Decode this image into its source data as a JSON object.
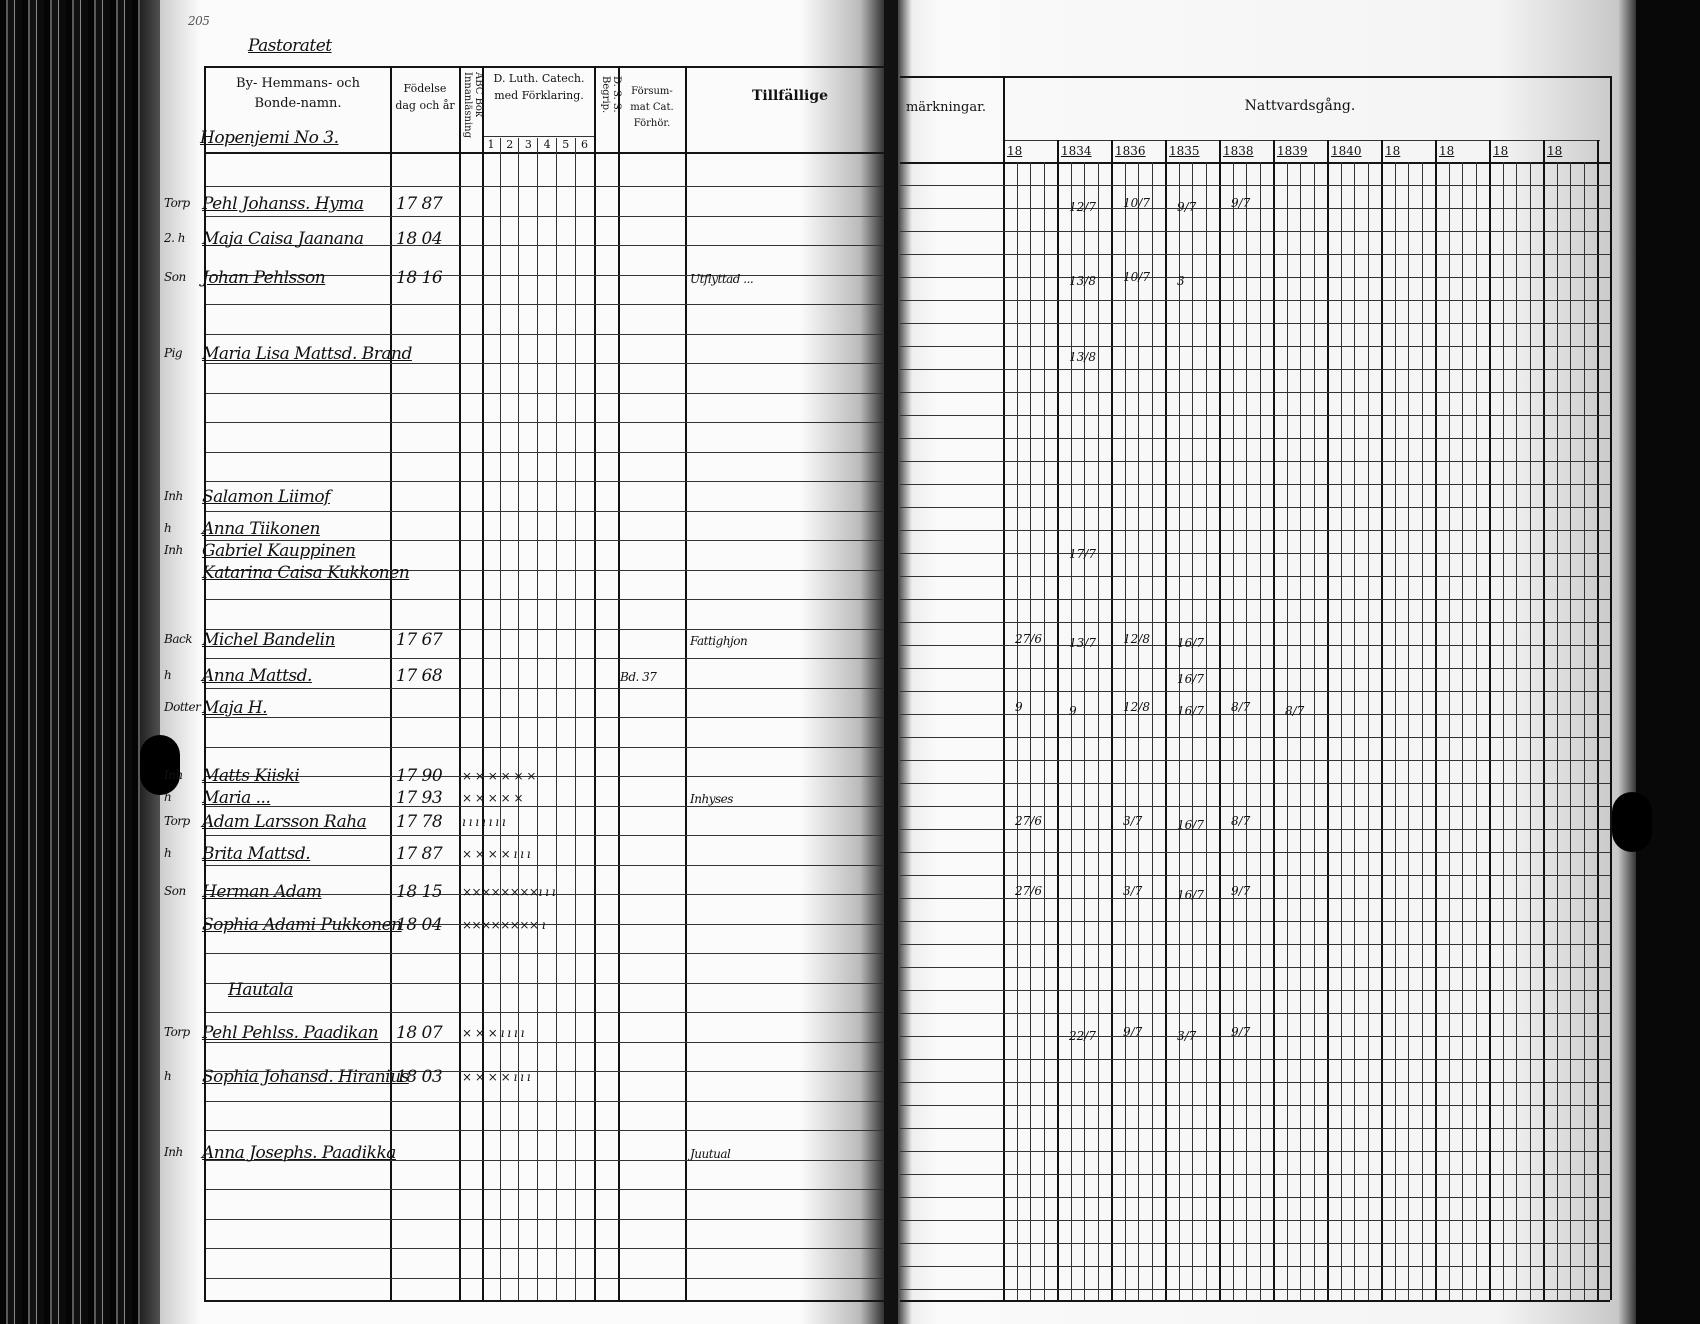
{
  "page_number": "205",
  "title": "Pastoratet",
  "left_header": {
    "name_col": [
      "By- Hemmans- och",
      "Bonde-namn."
    ],
    "birth_col": [
      "Födelse",
      "dag och år"
    ],
    "abc_col": "ABC Bok Innanläsning",
    "catech_col": [
      "D. Luth. Catech.",
      "med Förklaring."
    ],
    "catech_sub": [
      "1",
      "2",
      "3",
      "4",
      "5",
      "6"
    ],
    "dss_col": "D. S. S. Begrip.",
    "forsum_col": [
      "Försum-",
      "mat Cat.",
      "Förhör."
    ],
    "tillf_col": "Tillfällige"
  },
  "right_header": {
    "remarks_col": "märkningar.",
    "communion_col": "Nattvardsgång.",
    "years": [
      "18",
      "1834",
      "1836",
      "1835",
      "1838",
      "1839",
      "1840",
      "18",
      "18",
      "18",
      "18"
    ]
  },
  "village": "Hopenjemi No 3.",
  "entries": [
    {
      "prefix": "Torp",
      "name": "Pehl Johanss. Hyma",
      "birth": "17 87",
      "catech": "",
      "forsum": "",
      "note": "",
      "communion": [
        "",
        "12/7",
        "10/7",
        "9/7",
        "9/7",
        "",
        "",
        "",
        "",
        "",
        ""
      ]
    },
    {
      "prefix": "2. h",
      "name": "Maja Caisa Jaanana",
      "birth": "18 04",
      "catech": "",
      "forsum": "",
      "note": "",
      "communion": [
        "",
        "",
        "",
        "",
        "",
        "",
        "",
        "",
        "",
        "",
        ""
      ]
    },
    {
      "prefix": "Son",
      "name": "Johan Pehlsson",
      "birth": "18 16",
      "catech": "",
      "forsum": "",
      "note": "Utflyttad ...",
      "communion": [
        "",
        "13/8",
        "10/7",
        "3",
        "",
        "",
        "",
        "",
        "",
        "",
        ""
      ]
    },
    {
      "prefix": "Pig",
      "name": "Maria Lisa Mattsd. Brand",
      "birth": "",
      "catech": "",
      "forsum": "",
      "note": "",
      "communion": [
        "",
        "13/8",
        "",
        "",
        "",
        "",
        "",
        "",
        "",
        "",
        ""
      ]
    },
    {
      "prefix": "Inh",
      "name": "Salamon   Liimof",
      "birth": "",
      "catech": "",
      "forsum": "",
      "note": "",
      "communion": [
        "",
        "",
        "",
        "",
        "",
        "",
        "",
        "",
        "",
        "",
        ""
      ]
    },
    {
      "prefix": "h",
      "name": "Anna    Tiikonen",
      "birth": "",
      "catech": "",
      "forsum": "",
      "note": "",
      "communion": [
        "",
        "",
        "",
        "",
        "",
        "",
        "",
        "",
        "",
        "",
        ""
      ]
    },
    {
      "prefix": "Inh",
      "name": "Gabriel Kauppinen",
      "birth": "",
      "catech": "",
      "forsum": "",
      "note": "",
      "communion": [
        "",
        "17/7",
        "",
        "",
        "",
        "",
        "",
        "",
        "",
        "",
        ""
      ]
    },
    {
      "prefix": "",
      "name": "Katarina Caisa Kukkonen",
      "birth": "",
      "catech": "",
      "forsum": "",
      "note": "",
      "communion": [
        "",
        "",
        "",
        "",
        "",
        "",
        "",
        "",
        "",
        "",
        ""
      ]
    },
    {
      "prefix": "Back",
      "name": "Michel Bandelin",
      "birth": "17 67",
      "catech": "",
      "forsum": "",
      "note": "Fattighjon",
      "communion": [
        "27/6",
        "13/7",
        "12/8",
        "16/7",
        "",
        "",
        "",
        "",
        "",
        "",
        ""
      ]
    },
    {
      "prefix": "h",
      "name": "Anna Mattsd.",
      "birth": "17 68",
      "catech": "",
      "forsum": "Bd. 37",
      "note": "",
      "communion": [
        "",
        "",
        "",
        "16/7",
        "",
        "",
        "",
        "",
        "",
        "",
        ""
      ]
    },
    {
      "prefix": "Dotter",
      "name": "Maja H.",
      "birth": "",
      "catech": "",
      "forsum": "",
      "note": "",
      "communion": [
        "9",
        "9",
        "12/8",
        "16/7",
        "8/7",
        "8/7",
        "",
        "",
        "",
        "",
        ""
      ]
    },
    {
      "prefix": "Inh",
      "name": "Matts Kiiski",
      "birth": "17 90",
      "catech": "× × × × × ×",
      "forsum": "",
      "note": "",
      "communion": [
        "",
        "",
        "",
        "",
        "",
        "",
        "",
        "",
        "",
        "",
        ""
      ]
    },
    {
      "prefix": "h",
      "name": "Maria ... ",
      "birth": "17 93",
      "catech": "  × × × × ×",
      "forsum": "",
      "note": "Inhyses",
      "communion": [
        "",
        "",
        "",
        "",
        "",
        "",
        "",
        "",
        "",
        "",
        ""
      ]
    },
    {
      "prefix": "Torp",
      "name": "Adam Larsson Raha",
      "birth": "17 78",
      "catech": "ı ı ı ı ı ı ı",
      "forsum": "",
      "note": "",
      "communion": [
        "27/6",
        "",
        "3/7",
        "16/7",
        "8/7",
        "",
        "",
        "",
        "",
        "",
        ""
      ]
    },
    {
      "prefix": "h",
      "name": "Brita Mattsd.",
      "birth": "17 87",
      "catech": "× × × × ı ı ı",
      "forsum": "",
      "note": "",
      "communion": [
        "",
        "",
        "",
        "",
        "",
        "",
        "",
        "",
        "",
        "",
        ""
      ]
    },
    {
      "prefix": "Son",
      "name": "Herman Adam",
      "birth": "18 15",
      "catech": "××××××××ı ı ı",
      "forsum": "",
      "note": "",
      "communion": [
        "27/6",
        "",
        "3/7",
        "16/7",
        "9/7",
        "",
        "",
        "",
        "",
        "",
        ""
      ]
    },
    {
      "prefix": "",
      "name": "Sophia Adami Pukkonen",
      "birth": "18 04",
      "catech": "×××××××× ı",
      "forsum": "",
      "note": "",
      "communion": [
        "",
        "",
        "",
        "",
        "",
        "",
        "",
        "",
        "",
        "",
        ""
      ]
    },
    {
      "prefix": "",
      "name": "Hautala",
      "birth": "",
      "catech": "",
      "forsum": "",
      "note": "",
      "communion": [
        "",
        "",
        "",
        "",
        "",
        "",
        "",
        "",
        "",
        "",
        ""
      ]
    },
    {
      "prefix": "Torp",
      "name": "Pehl Pehlss. Paadikan",
      "birth": "18 07",
      "catech": "× × × ı ı ı ı",
      "forsum": "",
      "note": "",
      "communion": [
        "",
        "22/7",
        "9/7",
        "3/7",
        "9/7",
        "",
        "",
        "",
        "",
        "",
        ""
      ]
    },
    {
      "prefix": "h",
      "name": "Sophia Johansd. Hiranius",
      "birth": "18 03",
      "catech": "× × × × ı ı ı",
      "forsum": "",
      "note": "",
      "communion": [
        "",
        "",
        "",
        "",
        "",
        "",
        "",
        "",
        "",
        "",
        ""
      ]
    },
    {
      "prefix": "Inh",
      "name": "Anna Josephs. Paadikka",
      "birth": "",
      "catech": "",
      "forsum": "",
      "note": "Juutual",
      "communion": [
        "",
        "",
        "",
        "",
        "",
        "",
        "",
        "",
        "",
        "",
        ""
      ]
    }
  ],
  "colors": {
    "ink": "#111111",
    "paper": "#fafafa",
    "background": "#0a0a0a"
  }
}
